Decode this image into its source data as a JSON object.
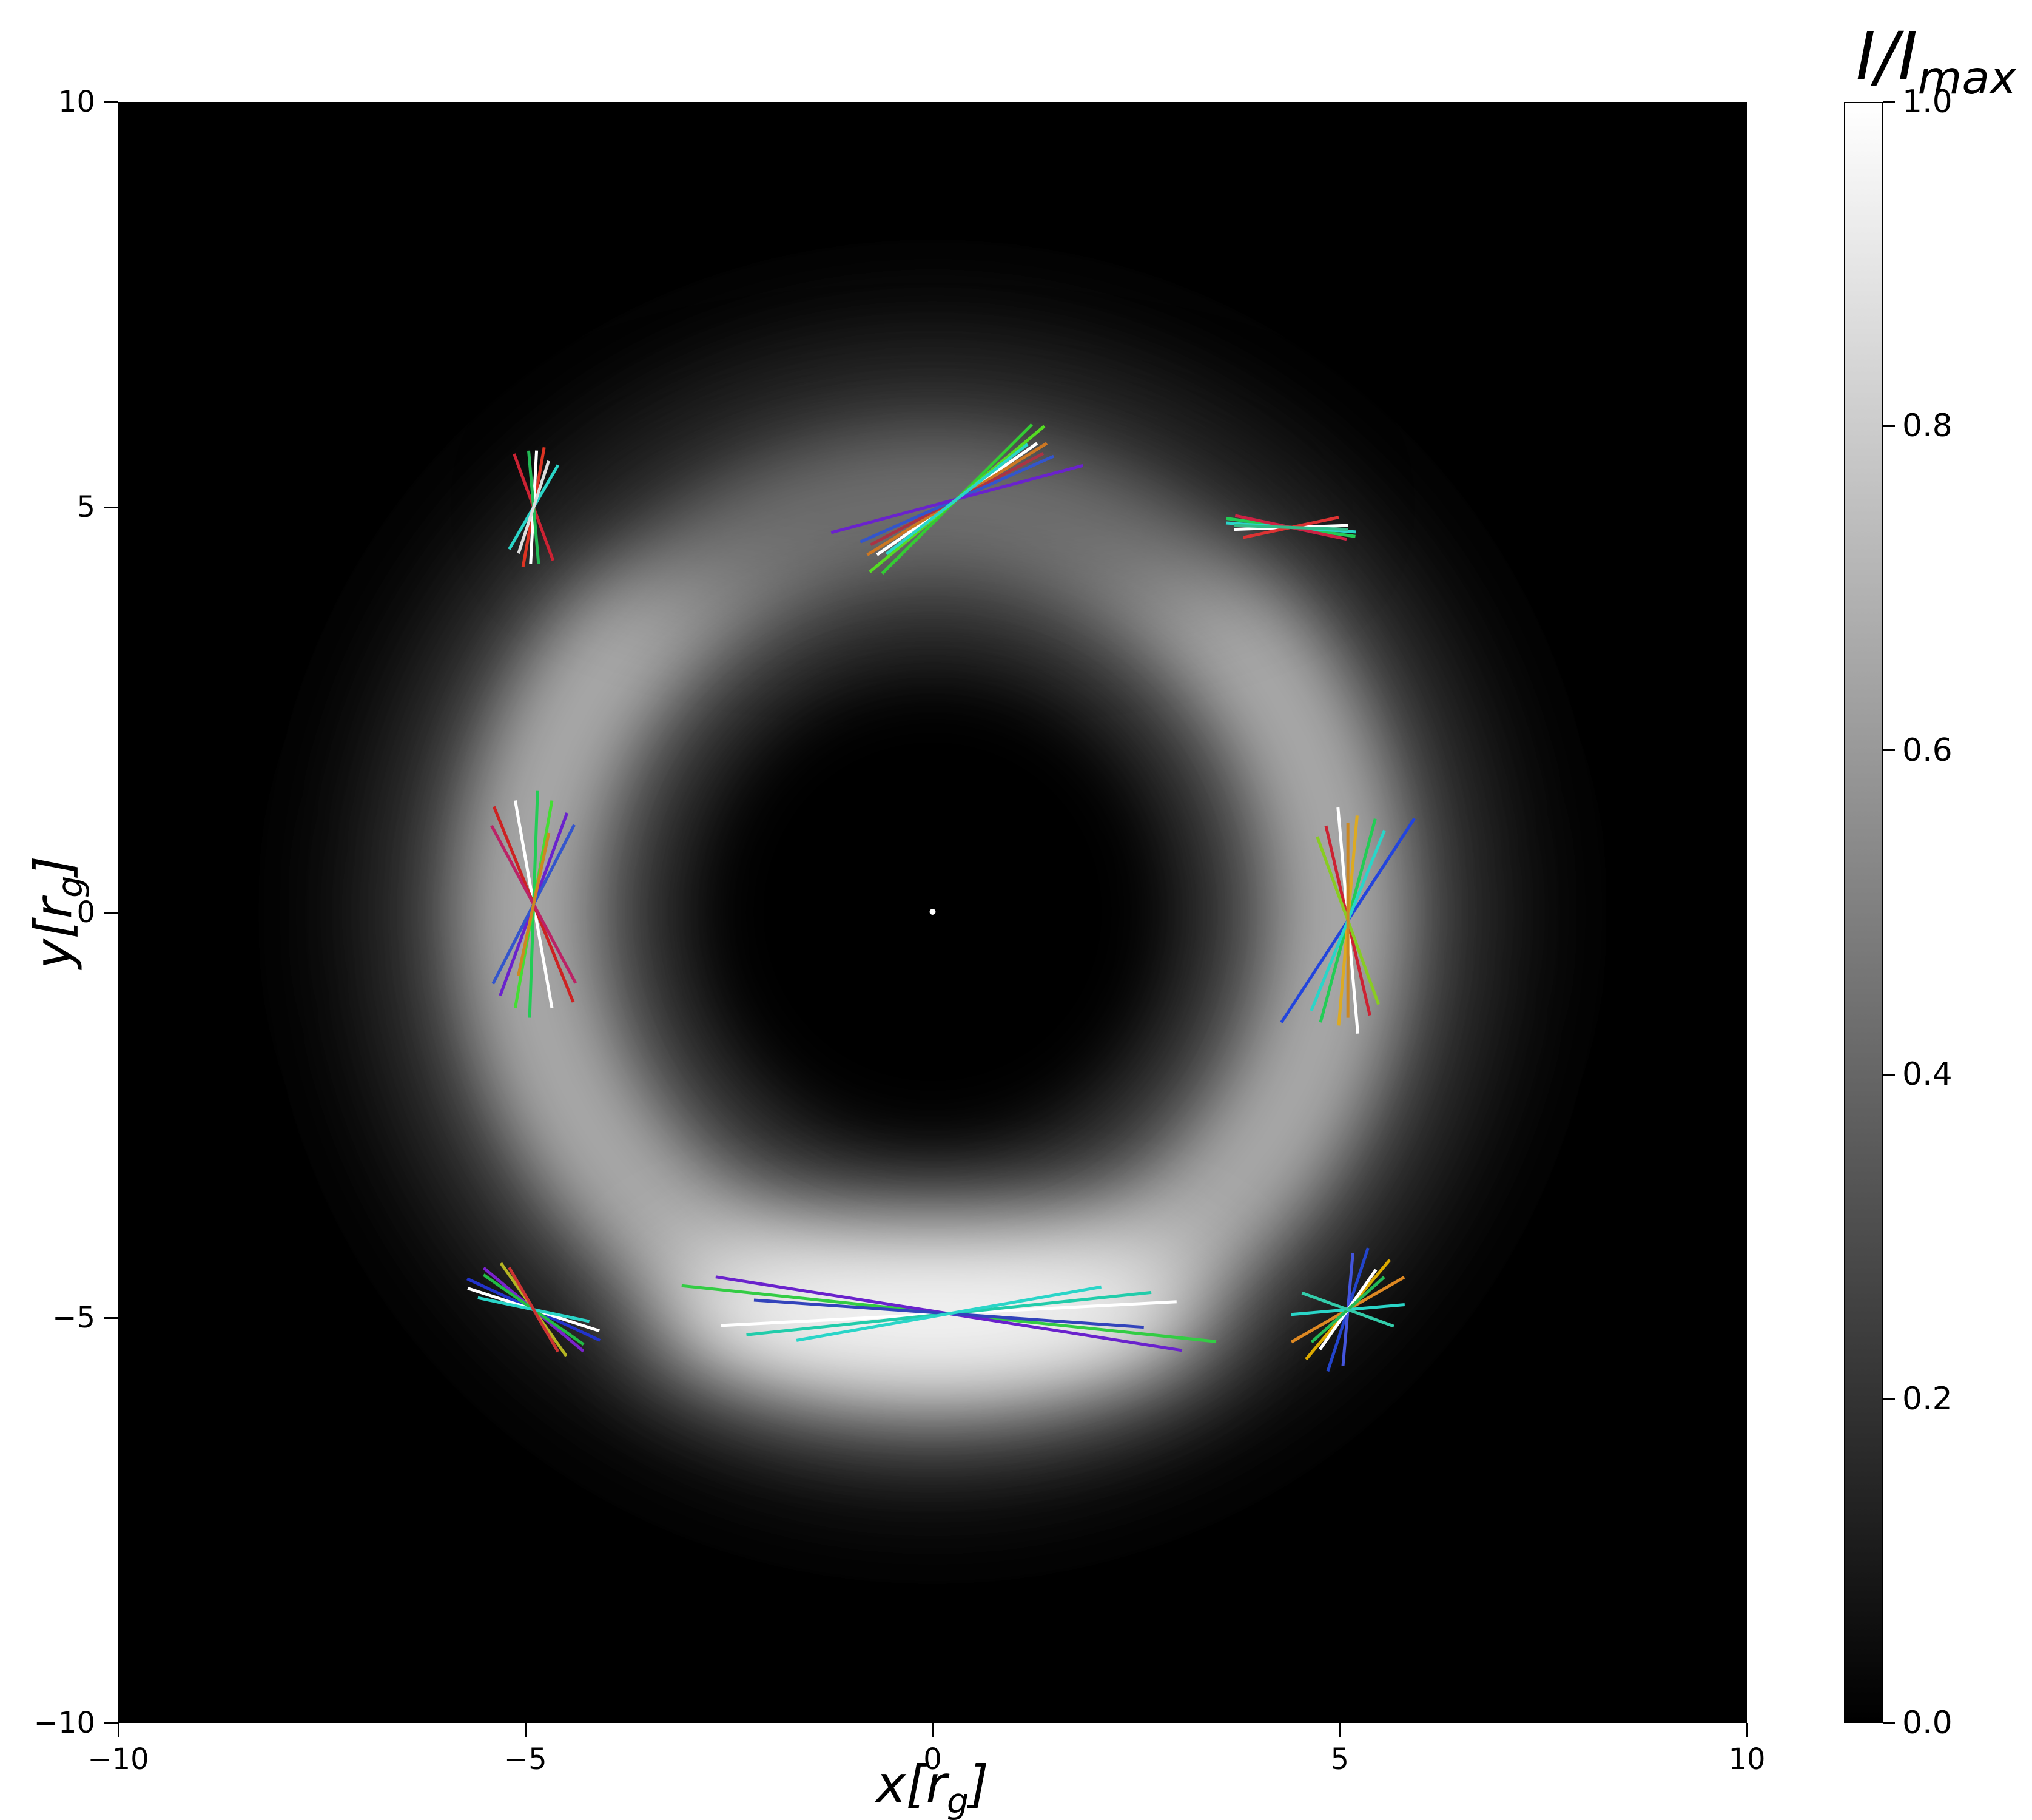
{
  "figure": {
    "background": "#ffffff"
  },
  "axes": {
    "x_label": {
      "pre": "x[",
      "var": "r",
      "sub": "g",
      "post": "]"
    },
    "y_label": {
      "pre": "y[",
      "var": "r",
      "sub": "g",
      "post": "]"
    },
    "x_ticks": [
      {
        "value": -10,
        "label": "−10"
      },
      {
        "value": -5,
        "label": "−5"
      },
      {
        "value": 0,
        "label": "0"
      },
      {
        "value": 5,
        "label": "5"
      },
      {
        "value": 10,
        "label": "10"
      }
    ],
    "y_ticks": [
      {
        "value": 10,
        "label": "10"
      },
      {
        "value": 5,
        "label": "5"
      },
      {
        "value": 0,
        "label": "0"
      },
      {
        "value": -5,
        "label": "−5"
      },
      {
        "value": -10,
        "label": "−10"
      }
    ]
  },
  "colorbar": {
    "title_main": "I/I",
    "title_sub": "max",
    "gradient_top": "#ffffff",
    "gradient_bottom": "#000000",
    "ticks": [
      {
        "value": 1.0,
        "label": "1.0"
      },
      {
        "value": 0.8,
        "label": "0.8"
      },
      {
        "value": 0.6,
        "label": "0.6"
      },
      {
        "value": 0.4,
        "label": "0.4"
      },
      {
        "value": 0.2,
        "label": "0.2"
      },
      {
        "value": 0.0,
        "label": "0.0"
      }
    ]
  },
  "chart_data": {
    "type": "heatmap",
    "title": "I/I_max",
    "xlabel": "x[r_g]",
    "ylabel": "y[r_g]",
    "xlim": [
      -10,
      10
    ],
    "ylim": [
      -10,
      10
    ],
    "colorbar_label": "I/I_max",
    "colorbar_range": [
      0.0,
      1.0
    ],
    "image": {
      "description": "Grayscale intensity map of a black-hole photon ring: dark center with tiny white dot at origin, bright diffuse ring of radius ~5 r_g, brightest toward the south (bottom), dimmer toward the north (top), fading to black beyond ~8 r_g.",
      "background_color": "#000000",
      "ring_radius_rg": 5,
      "ring_width_rg": 2.5,
      "peak_brightness_direction": "south",
      "relative_brightness": {
        "south": 1.0,
        "east": 0.62,
        "west": 0.6,
        "north": 0.5
      },
      "center_dot": {
        "x": 0,
        "y": 0,
        "color": "#ffffff"
      }
    },
    "polarization_clusters": [
      {
        "x": -4.9,
        "y": 5.0,
        "segments": [
          {
            "angle_deg": 110,
            "half_length_rg": 0.7,
            "color": "#cc2233"
          },
          {
            "angle_deg": 80,
            "half_length_rg": 0.75,
            "color": "#dd3322"
          },
          {
            "angle_deg": 87,
            "half_length_rg": 0.7,
            "color": "#ffffff"
          },
          {
            "angle_deg": 60,
            "half_length_rg": 0.6,
            "color": "#2ad5c8"
          },
          {
            "angle_deg": 95,
            "half_length_rg": 0.7,
            "color": "#22bb55"
          },
          {
            "angle_deg": 72,
            "half_length_rg": 0.6,
            "color": "#dddddd"
          }
        ]
      },
      {
        "x": 0.3,
        "y": 5.1,
        "segments": [
          {
            "angle_deg": 45,
            "half_length_rg": 1.3,
            "color": "#33cc33"
          },
          {
            "angle_deg": 40,
            "half_length_rg": 1.4,
            "color": "#55dd22"
          },
          {
            "angle_deg": 35,
            "half_length_rg": 1.2,
            "color": "#ffffff"
          },
          {
            "angle_deg": 32,
            "half_length_rg": 1.3,
            "color": "#cc7722"
          },
          {
            "angle_deg": 28,
            "half_length_rg": 1.2,
            "color": "#aa3344"
          },
          {
            "angle_deg": 24,
            "half_length_rg": 1.3,
            "color": "#3355cc"
          },
          {
            "angle_deg": 15,
            "half_length_rg": 1.6,
            "color": "#6a22cc"
          },
          {
            "angle_deg": 38,
            "half_length_rg": 1.1,
            "color": "#2ad5c8"
          }
        ]
      },
      {
        "x": 4.4,
        "y": 4.75,
        "segments": [
          {
            "angle_deg": -8,
            "half_length_rg": 0.8,
            "color": "#22cc55"
          },
          {
            "angle_deg": -4,
            "half_length_rg": 0.8,
            "color": "#2ad5c8"
          },
          {
            "angle_deg": -12,
            "half_length_rg": 0.7,
            "color": "#cc2244"
          },
          {
            "angle_deg": 2,
            "half_length_rg": 0.7,
            "color": "#ffffff"
          },
          {
            "angle_deg": 12,
            "half_length_rg": 0.6,
            "color": "#dd3333"
          },
          {
            "angle_deg": -2,
            "half_length_rg": 0.7,
            "color": "#33bb88"
          }
        ]
      },
      {
        "x": -4.9,
        "y": 0.1,
        "segments": [
          {
            "angle_deg": 100,
            "half_length_rg": 1.3,
            "color": "#ffffff"
          },
          {
            "angle_deg": 88,
            "half_length_rg": 1.4,
            "color": "#22cc55"
          },
          {
            "angle_deg": 80,
            "half_length_rg": 1.3,
            "color": "#44dd33"
          },
          {
            "angle_deg": 112,
            "half_length_rg": 1.3,
            "color": "#cc2222"
          },
          {
            "angle_deg": 118,
            "half_length_rg": 1.1,
            "color": "#bb2266"
          },
          {
            "angle_deg": 70,
            "half_length_rg": 1.2,
            "color": "#6a22cc"
          },
          {
            "angle_deg": 63,
            "half_length_rg": 1.1,
            "color": "#3355cc"
          },
          {
            "angle_deg": 78,
            "half_length_rg": 0.9,
            "color": "#cc8822"
          }
        ]
      },
      {
        "x": 5.1,
        "y": -0.1,
        "segments": [
          {
            "angle_deg": 57,
            "half_length_rg": 1.5,
            "color": "#2244dd"
          },
          {
            "angle_deg": 75,
            "half_length_rg": 1.3,
            "color": "#22cc55"
          },
          {
            "angle_deg": 85,
            "half_length_rg": 1.3,
            "color": "#ddaa22"
          },
          {
            "angle_deg": 95,
            "half_length_rg": 1.4,
            "color": "#ffffff"
          },
          {
            "angle_deg": 103,
            "half_length_rg": 1.2,
            "color": "#cc2233"
          },
          {
            "angle_deg": 68,
            "half_length_rg": 1.2,
            "color": "#2ad5c8"
          },
          {
            "angle_deg": 110,
            "half_length_rg": 1.1,
            "color": "#88cc22"
          },
          {
            "angle_deg": 90,
            "half_length_rg": 1.2,
            "color": "#cc8822"
          }
        ]
      },
      {
        "x": -4.9,
        "y": -4.9,
        "segments": [
          {
            "angle_deg": -25,
            "half_length_rg": 0.9,
            "color": "#2233cc"
          },
          {
            "angle_deg": -18,
            "half_length_rg": 0.85,
            "color": "#ffffff"
          },
          {
            "angle_deg": -40,
            "half_length_rg": 0.8,
            "color": "#7a22cc"
          },
          {
            "angle_deg": -55,
            "half_length_rg": 0.7,
            "color": "#b5b522"
          },
          {
            "angle_deg": -35,
            "half_length_rg": 0.75,
            "color": "#22bb44"
          },
          {
            "angle_deg": -12,
            "half_length_rg": 0.7,
            "color": "#2ad5c8"
          },
          {
            "angle_deg": -60,
            "half_length_rg": 0.6,
            "color": "#cc3333"
          }
        ]
      },
      {
        "x": 0.2,
        "y": -4.95,
        "segments": [
          {
            "angle_deg": 3,
            "half_length_rg": 2.8,
            "color": "#ffffff"
          },
          {
            "angle_deg": -6,
            "half_length_rg": 3.3,
            "color": "#33cc44"
          },
          {
            "angle_deg": 6,
            "half_length_rg": 2.5,
            "color": "#22ccaa"
          },
          {
            "angle_deg": -9,
            "half_length_rg": 2.9,
            "color": "#6a22cc"
          },
          {
            "angle_deg": -4,
            "half_length_rg": 2.4,
            "color": "#3344bb"
          },
          {
            "angle_deg": 10,
            "half_length_rg": 1.9,
            "color": "#2ad5c8"
          }
        ]
      },
      {
        "x": 5.1,
        "y": -4.9,
        "segments": [
          {
            "angle_deg": 30,
            "half_length_rg": 0.8,
            "color": "#dd8822"
          },
          {
            "angle_deg": 50,
            "half_length_rg": 0.8,
            "color": "#ddaa00"
          },
          {
            "angle_deg": 72,
            "half_length_rg": 0.8,
            "color": "#2244cc"
          },
          {
            "angle_deg": 85,
            "half_length_rg": 0.7,
            "color": "#4455dd"
          },
          {
            "angle_deg": 5,
            "half_length_rg": 0.7,
            "color": "#2ad5c8"
          },
          {
            "angle_deg": 55,
            "half_length_rg": 0.6,
            "color": "#ffffff"
          },
          {
            "angle_deg": 42,
            "half_length_rg": 0.6,
            "color": "#22bb55"
          },
          {
            "angle_deg": -20,
            "half_length_rg": 0.6,
            "color": "#33ccaa"
          }
        ]
      }
    ]
  }
}
